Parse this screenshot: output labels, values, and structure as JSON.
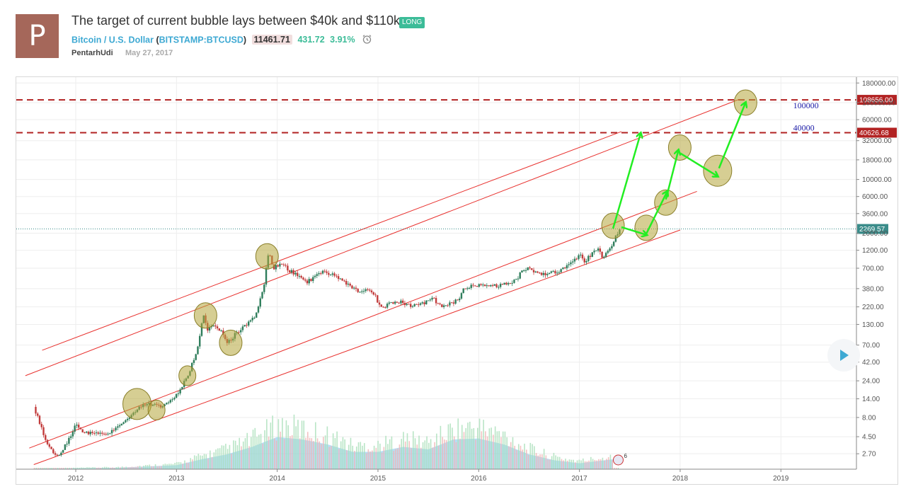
{
  "header": {
    "avatar_letter": "P",
    "title": "The target of current bubble lays between $40k and $110k",
    "badge": "LONG",
    "symbol_name": "Bitcoin / U.S. Dollar",
    "symbol_code": "BITSTAMP:BTCUSD",
    "open_paren": "(",
    "close_paren": ")",
    "price": "11461.71",
    "change": "431.72",
    "change_pct": "3.91%",
    "author": "PentarhUdi",
    "date": "May 27, 2017"
  },
  "colors": {
    "avatar": "#a5675a",
    "badge": "#3cbc98",
    "symbol": "#3ea9d3",
    "up": "#3cbc98",
    "candle_up": "#2e7d5b",
    "candle_down": "#c23b3b",
    "channel": "#e8312e",
    "target_line": "#b22222",
    "arrow": "#22ee22",
    "circle_fill": "#b5a63a",
    "volume": "#7cc4ee",
    "current_price_line": "#3a8c8a"
  },
  "chart_data": {
    "type": "candlestick",
    "y_scale": "log",
    "y_ticks": [
      "180000.00",
      "100000.00",
      "60000.00",
      "32000.00",
      "18000.00",
      "10000.00",
      "6000.00",
      "3600.00",
      "2000.00",
      "1200.00",
      "700.00",
      "380.00",
      "220.00",
      "130.00",
      "70.00",
      "42.00",
      "24.00",
      "14.00",
      "8.00",
      "4.50",
      "2.70"
    ],
    "x_ticks": [
      "2012",
      "2013",
      "2014",
      "2015",
      "2016",
      "2017",
      "2018",
      "2019"
    ],
    "xlim": [
      "2011-06",
      "2019-10"
    ],
    "ylim": [
      1.7,
      210000
    ],
    "price_path": [
      [
        "2011-08-01",
        11
      ],
      [
        "2011-09-01",
        5.5
      ],
      [
        "2011-10-01",
        3.0
      ],
      [
        "2011-11-01",
        2.5
      ],
      [
        "2011-12-01",
        3.8
      ],
      [
        "2012-01-01",
        6.5
      ],
      [
        "2012-02-01",
        5.0
      ],
      [
        "2012-03-01",
        4.9
      ],
      [
        "2012-05-01",
        5.1
      ],
      [
        "2012-07-01",
        7.5
      ],
      [
        "2012-08-15",
        11
      ],
      [
        "2012-09-15",
        12
      ],
      [
        "2012-11-01",
        11
      ],
      [
        "2012-12-15",
        13.5
      ],
      [
        "2013-01-15",
        18
      ],
      [
        "2013-02-15",
        30
      ],
      [
        "2013-03-15",
        60
      ],
      [
        "2013-04-08",
        180
      ],
      [
        "2013-04-20",
        110
      ],
      [
        "2013-05-15",
        120
      ],
      [
        "2013-06-15",
        100
      ],
      [
        "2013-07-05",
        75
      ],
      [
        "2013-08-15",
        110
      ],
      [
        "2013-09-15",
        130
      ],
      [
        "2013-10-15",
        170
      ],
      [
        "2013-11-15",
        450
      ],
      [
        "2013-11-30",
        1100
      ],
      [
        "2013-12-20",
        700
      ],
      [
        "2014-01-15",
        850
      ],
      [
        "2014-02-15",
        650
      ],
      [
        "2014-03-15",
        550
      ],
      [
        "2014-04-15",
        450
      ],
      [
        "2014-05-15",
        550
      ],
      [
        "2014-06-15",
        620
      ],
      [
        "2014-07-15",
        600
      ],
      [
        "2014-08-15",
        500
      ],
      [
        "2014-09-15",
        420
      ],
      [
        "2014-10-15",
        360
      ],
      [
        "2014-11-15",
        370
      ],
      [
        "2014-12-15",
        330
      ],
      [
        "2015-01-15",
        210
      ],
      [
        "2015-02-15",
        240
      ],
      [
        "2015-03-15",
        260
      ],
      [
        "2015-04-15",
        230
      ],
      [
        "2015-05-15",
        235
      ],
      [
        "2015-06-15",
        245
      ],
      [
        "2015-07-15",
        285
      ],
      [
        "2015-08-15",
        230
      ],
      [
        "2015-09-15",
        235
      ],
      [
        "2015-10-15",
        270
      ],
      [
        "2015-11-10",
        380
      ],
      [
        "2015-12-15",
        430
      ],
      [
        "2016-01-15",
        410
      ],
      [
        "2016-02-15",
        420
      ],
      [
        "2016-03-15",
        415
      ],
      [
        "2016-04-15",
        440
      ],
      [
        "2016-05-15",
        500
      ],
      [
        "2016-06-15",
        700
      ],
      [
        "2016-07-15",
        660
      ],
      [
        "2016-08-15",
        580
      ],
      [
        "2016-09-15",
        610
      ],
      [
        "2016-10-15",
        650
      ],
      [
        "2016-11-15",
        740
      ],
      [
        "2016-12-15",
        900
      ],
      [
        "2017-01-05",
        1050
      ],
      [
        "2017-01-15",
        830
      ],
      [
        "2017-02-15",
        1050
      ],
      [
        "2017-03-05",
        1250
      ],
      [
        "2017-03-25",
        950
      ],
      [
        "2017-04-15",
        1200
      ],
      [
        "2017-05-10",
        1750
      ],
      [
        "2017-05-25",
        2270
      ]
    ],
    "current_price": 2269.57,
    "current_price_label": "2269.57",
    "target_lines": [
      {
        "price": 108656,
        "label": "108656.00",
        "annotation": "100000"
      },
      {
        "price": 40626.68,
        "label": "40626.68",
        "annotation": "40000"
      }
    ],
    "channel_lines": [
      {
        "from": [
          "2011-09-01",
          60
        ],
        "to": [
          "2017-06-01",
          42000
        ]
      },
      {
        "from": [
          "2011-07-01",
          28
        ],
        "to": [
          "2018-08-01",
          110000
        ]
      },
      {
        "from": [
          "2011-07-15",
          3.2
        ],
        "to": [
          "2018-03-01",
          7000
        ]
      },
      {
        "from": [
          "2011-08-01",
          1.95
        ],
        "to": [
          "2018-01-01",
          2200
        ]
      }
    ],
    "projection_arrows": [
      {
        "from": [
          "2017-05-01",
          2300
        ],
        "to": [
          "2017-08-10",
          40000
        ]
      },
      {
        "from": [
          "2017-06-01",
          2400
        ],
        "to": [
          "2017-09-01",
          1900
        ]
      },
      {
        "from": [
          "2017-09-01",
          2000
        ],
        "to": [
          "2017-11-15",
          7000
        ]
      },
      {
        "from": [
          "2017-11-10",
          5500
        ],
        "to": [
          "2017-12-25",
          24000
        ]
      },
      {
        "from": [
          "2018-01-01",
          22000
        ],
        "to": [
          "2018-05-15",
          11000
        ]
      },
      {
        "from": [
          "2018-05-20",
          14000
        ],
        "to": [
          "2018-08-25",
          100000
        ]
      }
    ],
    "highlight_circles": [
      {
        "at": [
          "2012-08-10",
          12
        ],
        "size": "large"
      },
      {
        "at": [
          "2012-10-20",
          10
        ],
        "size": "small"
      },
      {
        "at": [
          "2013-02-10",
          28
        ],
        "size": "small"
      },
      {
        "at": [
          "2013-04-15",
          170
        ],
        "size": "medium"
      },
      {
        "at": [
          "2013-07-15",
          75
        ],
        "size": "medium"
      },
      {
        "at": [
          "2013-11-25",
          1000
        ],
        "size": "medium"
      },
      {
        "at": [
          "2017-05-01",
          2500
        ],
        "size": "medium"
      },
      {
        "at": [
          "2017-08-30",
          2350
        ],
        "size": "medium"
      },
      {
        "at": [
          "2017-11-10",
          5000
        ],
        "size": "medium"
      },
      {
        "at": [
          "2017-12-30",
          26000
        ],
        "size": "medium"
      },
      {
        "at": [
          "2018-05-15",
          13000
        ],
        "size": "large"
      },
      {
        "at": [
          "2018-08-25",
          100000
        ],
        "size": "medium"
      }
    ],
    "volume_profile": [
      [
        "2011-08",
        0.01
      ],
      [
        "2012-06",
        0.03
      ],
      [
        "2013-01",
        0.08
      ],
      [
        "2013-04",
        0.2
      ],
      [
        "2013-07",
        0.3
      ],
      [
        "2013-10",
        0.45
      ],
      [
        "2014-01",
        0.65
      ],
      [
        "2014-04",
        0.6
      ],
      [
        "2014-07",
        0.5
      ],
      [
        "2014-10",
        0.35
      ],
      [
        "2015-01",
        0.35
      ],
      [
        "2015-04",
        0.45
      ],
      [
        "2015-07",
        0.4
      ],
      [
        "2015-10",
        0.6
      ],
      [
        "2016-01",
        0.62
      ],
      [
        "2016-04",
        0.5
      ],
      [
        "2016-07",
        0.3
      ],
      [
        "2016-10",
        0.18
      ],
      [
        "2017-01",
        0.12
      ],
      [
        "2017-05",
        0.2
      ]
    ],
    "event_marker_count": "6"
  }
}
